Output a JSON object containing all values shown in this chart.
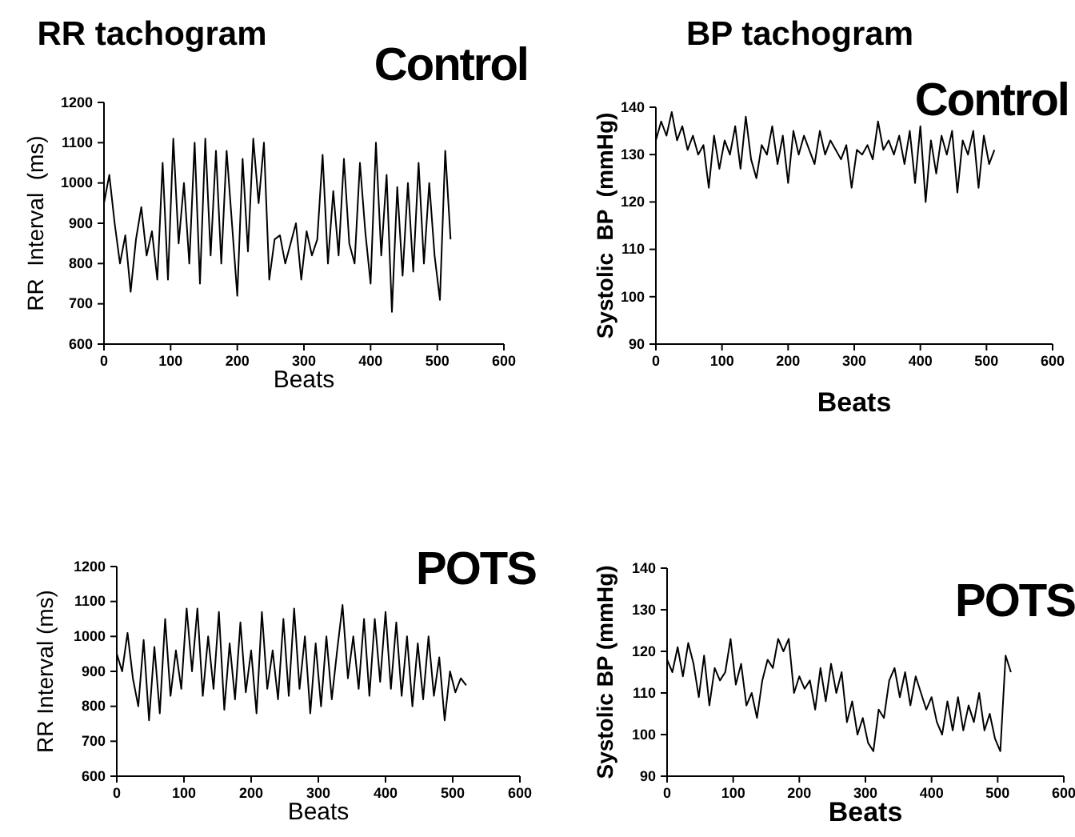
{
  "chart_data": [
    {
      "type": "line",
      "title": "RR tachogram",
      "xlabel": "Beats",
      "ylabel": "RR  Interval  (ms)",
      "xlim": [
        0,
        600
      ],
      "xticks": [
        0,
        100,
        200,
        300,
        400,
        500,
        600
      ],
      "ylim": [
        600,
        1200
      ],
      "yticks": [
        600,
        700,
        800,
        900,
        1000,
        1100,
        1200
      ],
      "annotations": [
        "Control"
      ],
      "series": [
        {
          "color": "#000000",
          "x": [
            0,
            8,
            16,
            24,
            32,
            40,
            48,
            56,
            64,
            72,
            80,
            88,
            96,
            104,
            112,
            120,
            128,
            136,
            144,
            152,
            160,
            168,
            176,
            184,
            192,
            200,
            208,
            216,
            224,
            232,
            240,
            248,
            256,
            264,
            272,
            280,
            288,
            296,
            304,
            312,
            320,
            328,
            336,
            344,
            352,
            360,
            368,
            376,
            384,
            392,
            400,
            408,
            416,
            424,
            432,
            440,
            448,
            456,
            464,
            472,
            480,
            488,
            496,
            504,
            512,
            520
          ],
          "values": [
            950,
            1020,
            900,
            800,
            870,
            730,
            860,
            940,
            820,
            880,
            760,
            1050,
            760,
            1110,
            850,
            1000,
            800,
            1100,
            750,
            1110,
            820,
            1080,
            800,
            1080,
            900,
            720,
            1060,
            830,
            1110,
            950,
            1100,
            760,
            860,
            870,
            800,
            850,
            900,
            760,
            880,
            820,
            860,
            1070,
            800,
            980,
            820,
            1060,
            850,
            800,
            1050,
            880,
            750,
            1100,
            820,
            1020,
            680,
            990,
            770,
            1000,
            780,
            1050,
            800,
            1000,
            820,
            710,
            1080,
            860
          ]
        }
      ]
    },
    {
      "type": "line",
      "title": "BP tachogram",
      "xlabel": "Beats",
      "ylabel": "Systolic  BP  (mmHg)",
      "xlim": [
        0,
        600
      ],
      "xticks": [
        0,
        100,
        200,
        300,
        400,
        500,
        600
      ],
      "ylim": [
        90,
        140
      ],
      "yticks": [
        90,
        100,
        110,
        120,
        130,
        140
      ],
      "annotations": [
        "Control"
      ],
      "series": [
        {
          "color": "#000000",
          "x": [
            0,
            8,
            16,
            24,
            32,
            40,
            48,
            56,
            64,
            72,
            80,
            88,
            96,
            104,
            112,
            120,
            128,
            136,
            144,
            152,
            160,
            168,
            176,
            184,
            192,
            200,
            208,
            216,
            224,
            232,
            240,
            248,
            256,
            264,
            272,
            280,
            288,
            296,
            304,
            312,
            320,
            328,
            336,
            344,
            352,
            360,
            368,
            376,
            384,
            392,
            400,
            408,
            416,
            424,
            432,
            440,
            448,
            456,
            464,
            472,
            480,
            488,
            496,
            504,
            512
          ],
          "values": [
            133,
            137,
            134,
            139,
            133,
            136,
            131,
            134,
            130,
            132,
            123,
            134,
            127,
            133,
            130,
            136,
            127,
            138,
            129,
            125,
            132,
            130,
            136,
            128,
            134,
            124,
            135,
            130,
            134,
            131,
            128,
            135,
            130,
            133,
            131,
            129,
            132,
            123,
            131,
            130,
            132,
            129,
            137,
            131,
            133,
            130,
            134,
            128,
            135,
            124,
            136,
            120,
            133,
            126,
            134,
            130,
            135,
            122,
            133,
            130,
            135,
            123,
            134,
            128,
            131
          ]
        }
      ]
    },
    {
      "type": "line",
      "xlabel": "Beats",
      "ylabel": "RR Interval (ms)",
      "xlim": [
        0,
        600
      ],
      "xticks": [
        0,
        100,
        200,
        300,
        400,
        500,
        600
      ],
      "ylim": [
        600,
        1200
      ],
      "yticks": [
        600,
        700,
        800,
        900,
        1000,
        1100,
        1200
      ],
      "annotations": [
        "POTS"
      ],
      "series": [
        {
          "color": "#000000",
          "x": [
            0,
            8,
            16,
            24,
            32,
            40,
            48,
            56,
            64,
            72,
            80,
            88,
            96,
            104,
            112,
            120,
            128,
            136,
            144,
            152,
            160,
            168,
            176,
            184,
            192,
            200,
            208,
            216,
            224,
            232,
            240,
            248,
            256,
            264,
            272,
            280,
            288,
            296,
            304,
            312,
            320,
            328,
            336,
            344,
            352,
            360,
            368,
            376,
            384,
            392,
            400,
            408,
            416,
            424,
            432,
            440,
            448,
            456,
            464,
            472,
            480,
            488,
            496,
            504,
            512,
            520
          ],
          "values": [
            950,
            900,
            1010,
            880,
            800,
            990,
            760,
            970,
            780,
            1050,
            830,
            960,
            850,
            1080,
            900,
            1080,
            830,
            1000,
            850,
            1070,
            790,
            980,
            820,
            1040,
            840,
            960,
            780,
            1070,
            850,
            960,
            820,
            1050,
            830,
            1080,
            850,
            1000,
            780,
            980,
            800,
            1000,
            820,
            960,
            1090,
            880,
            1000,
            850,
            1050,
            830,
            1050,
            870,
            1070,
            850,
            1040,
            830,
            1000,
            800,
            980,
            820,
            1000,
            830,
            940,
            760,
            900,
            840,
            880,
            860
          ]
        }
      ]
    },
    {
      "type": "line",
      "xlabel": "Beats",
      "ylabel": "Systolic BP (mmHg)",
      "xlim": [
        0,
        600
      ],
      "xticks": [
        0,
        100,
        200,
        300,
        400,
        500,
        600
      ],
      "ylim": [
        90,
        140
      ],
      "yticks": [
        90,
        100,
        110,
        120,
        130,
        140
      ],
      "annotations": [
        "POTS"
      ],
      "series": [
        {
          "color": "#000000",
          "x": [
            0,
            8,
            16,
            24,
            32,
            40,
            48,
            56,
            64,
            72,
            80,
            88,
            96,
            104,
            112,
            120,
            128,
            136,
            144,
            152,
            160,
            168,
            176,
            184,
            192,
            200,
            208,
            216,
            224,
            232,
            240,
            248,
            256,
            264,
            272,
            280,
            288,
            296,
            304,
            312,
            320,
            328,
            336,
            344,
            352,
            360,
            368,
            376,
            384,
            392,
            400,
            408,
            416,
            424,
            432,
            440,
            448,
            456,
            464,
            472,
            480,
            488,
            496,
            504,
            512,
            520
          ],
          "values": [
            118,
            115,
            121,
            114,
            122,
            117,
            109,
            119,
            107,
            116,
            113,
            115,
            123,
            112,
            117,
            107,
            110,
            104,
            113,
            118,
            116,
            123,
            120,
            123,
            110,
            114,
            111,
            113,
            106,
            116,
            108,
            117,
            110,
            115,
            103,
            108,
            100,
            104,
            98,
            96,
            106,
            104,
            113,
            116,
            109,
            115,
            107,
            114,
            110,
            106,
            109,
            103,
            100,
            108,
            101,
            109,
            101,
            107,
            103,
            110,
            101,
            105,
            99,
            96,
            119,
            115
          ]
        }
      ]
    }
  ]
}
